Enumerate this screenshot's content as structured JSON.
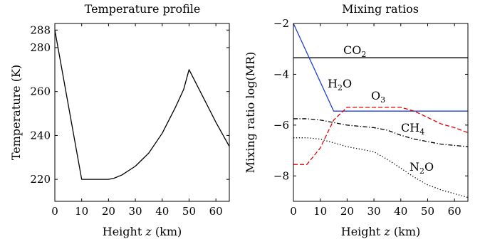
{
  "chart_data": [
    {
      "type": "line",
      "title": "Temperature profile",
      "xlabel": "Height z (km)",
      "ylabel": "Temperature (K)",
      "xlim": [
        0,
        65
      ],
      "ylim": [
        210,
        291
      ],
      "xticks": [
        "0",
        "10",
        "20",
        "30",
        "40",
        "50",
        "60"
      ],
      "yticks": [
        "220",
        "240",
        "260",
        "280",
        "288"
      ],
      "grid": false,
      "series": [
        {
          "color": "#000000",
          "style": "solid",
          "x": [
            0,
            10,
            20,
            22,
            25,
            30,
            35,
            40,
            45,
            48,
            50,
            55,
            60,
            65
          ],
          "y": [
            288,
            220,
            220,
            220.5,
            222,
            226,
            232,
            241,
            253,
            261,
            270,
            258,
            246,
            235
          ]
        }
      ]
    },
    {
      "type": "line",
      "title": "Mixing ratios",
      "xlabel": "Height z (km)",
      "ylabel": "Mixing ratio log(MR)",
      "xlim": [
        0,
        65
      ],
      "ylim": [
        -9,
        -2
      ],
      "xticks": [
        "0",
        "10",
        "20",
        "30",
        "40",
        "50",
        "60"
      ],
      "yticks": [
        "−2",
        "−4",
        "−6",
        "−8"
      ],
      "grid": false,
      "series": [
        {
          "name": "CO₂",
          "label_base": "CO",
          "label_sub": "2",
          "color": "#000000",
          "style": "solid",
          "x": [
            0,
            65
          ],
          "y": [
            -3.35,
            -3.35
          ]
        },
        {
          "name": "H₂O",
          "label_base": "H",
          "label_sub": "2",
          "label_tail": "O",
          "color": "#1f3fd0",
          "style": "solid",
          "x": [
            0,
            15,
            65
          ],
          "y": [
            -2,
            -5.45,
            -5.45
          ]
        },
        {
          "name": "O₃",
          "label_base": "O",
          "label_sub": "3",
          "color": "#e00000",
          "style": "dashed",
          "x": [
            0,
            5,
            10,
            15,
            20,
            25,
            30,
            35,
            40,
            45,
            50,
            55,
            60,
            65
          ],
          "y": [
            -7.55,
            -7.55,
            -6.9,
            -5.8,
            -5.3,
            -5.3,
            -5.3,
            -5.3,
            -5.3,
            -5.45,
            -5.7,
            -5.95,
            -6.1,
            -6.3
          ]
        },
        {
          "name": "CH₄",
          "label_base": "CH",
          "label_sub": "4",
          "color": "#000000",
          "style": "dashdot",
          "x": [
            0,
            5,
            10,
            15,
            20,
            25,
            30,
            35,
            40,
            45,
            50,
            55,
            60,
            65
          ],
          "y": [
            -5.75,
            -5.75,
            -5.8,
            -5.9,
            -6.0,
            -6.05,
            -6.1,
            -6.2,
            -6.4,
            -6.55,
            -6.65,
            -6.75,
            -6.8,
            -6.85
          ]
        },
        {
          "name": "N₂O",
          "label_base": "N",
          "label_sub": "2",
          "label_tail": "O",
          "color": "#000000",
          "style": "dotted",
          "x": [
            0,
            5,
            10,
            15,
            20,
            25,
            30,
            35,
            40,
            45,
            50,
            55,
            60,
            65
          ],
          "y": [
            -6.5,
            -6.5,
            -6.55,
            -6.7,
            -6.85,
            -6.95,
            -7.05,
            -7.35,
            -7.7,
            -8.05,
            -8.35,
            -8.55,
            -8.7,
            -8.85
          ]
        }
      ]
    }
  ]
}
